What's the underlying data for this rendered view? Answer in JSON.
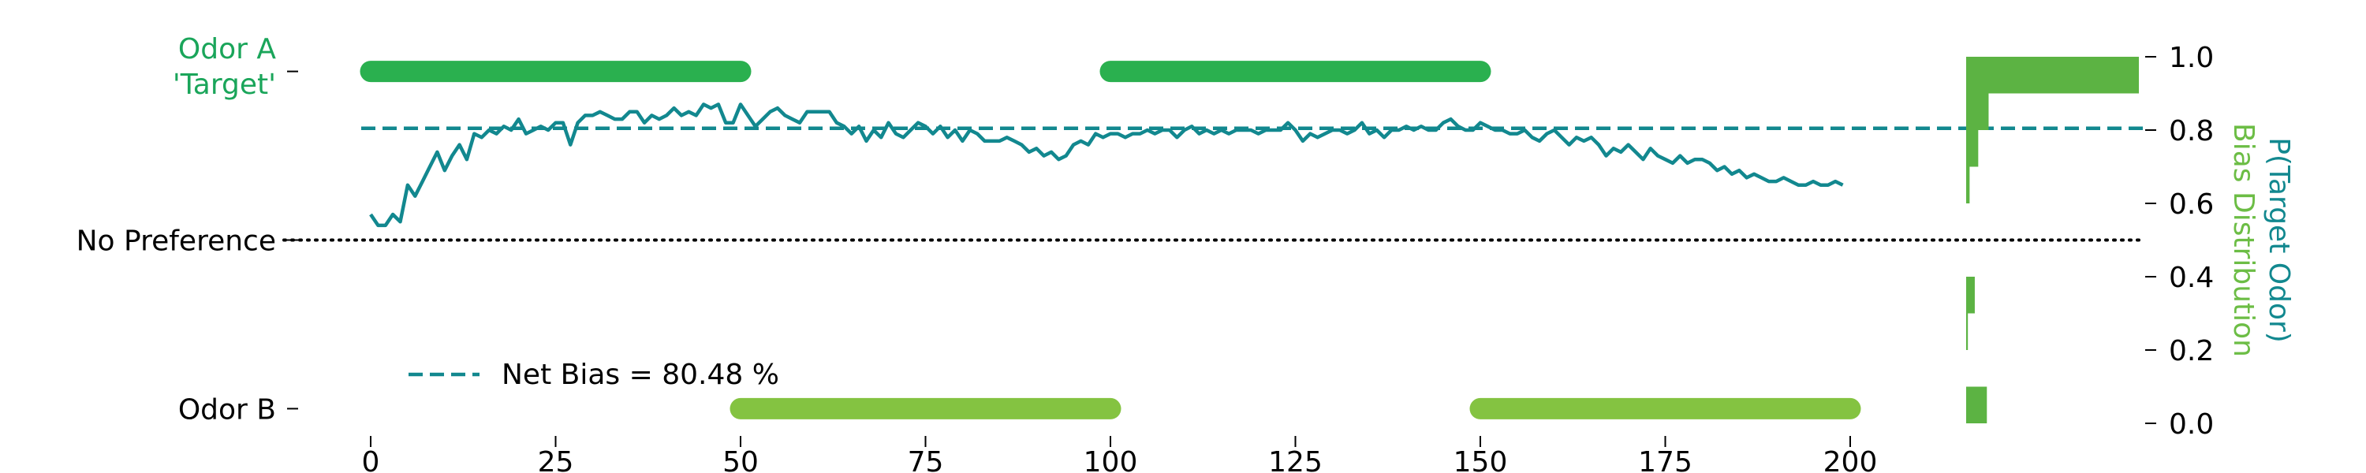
{
  "chart_data": {
    "type": "line",
    "title": "",
    "xlabel": "",
    "ylabel": "P(Target Odor)",
    "ylabel2": "Bias Distribution",
    "xlim": [
      -4,
      204
    ],
    "ylim": [
      -0.06,
      1.06
    ],
    "x_ticks": [
      0,
      25,
      50,
      75,
      100,
      125,
      150,
      175,
      200
    ],
    "y_ticks": [
      0.0,
      0.2,
      0.4,
      0.6,
      0.8,
      1.0
    ],
    "y_tick_labels": [
      "0.0",
      "0.2",
      "0.4",
      "0.6",
      "0.8",
      "1.0"
    ],
    "left_labels": [
      {
        "key": "odor_a",
        "lines": [
          "Odor A",
          "'Target'"
        ],
        "y": 0.96,
        "color": "#1aa55a"
      },
      {
        "key": "no_pref",
        "lines": [
          "No Preference"
        ],
        "y": 0.5,
        "color": "#000000"
      },
      {
        "key": "odor_b",
        "lines": [
          "Odor B"
        ],
        "y": 0.04,
        "color": "#000000"
      }
    ],
    "no_preference_y": 0.5,
    "net_bias": {
      "y": 0.8048,
      "label": "Net Bias = 80.48 %",
      "color": "#12888f"
    },
    "odor_blocks": [
      {
        "odor": "A",
        "x_start": 0,
        "x_end": 50,
        "y": 0.96,
        "color": "#2ab04f"
      },
      {
        "odor": "B",
        "x_start": 50,
        "x_end": 100,
        "y": 0.04,
        "color": "#84c341"
      },
      {
        "odor": "A",
        "x_start": 100,
        "x_end": 150,
        "y": 0.96,
        "color": "#2ab04f"
      },
      {
        "odor": "B",
        "x_start": 150,
        "x_end": 200,
        "y": 0.04,
        "color": "#84c341"
      }
    ],
    "series": [
      {
        "color": "#12888f",
        "points": [
          [
            0,
            0.57
          ],
          [
            1,
            0.54
          ],
          [
            2,
            0.54
          ],
          [
            3,
            0.57
          ],
          [
            4,
            0.55
          ],
          [
            5,
            0.65
          ],
          [
            6,
            0.62
          ],
          [
            7,
            0.66
          ],
          [
            8,
            0.7
          ],
          [
            9,
            0.74
          ],
          [
            10,
            0.69
          ],
          [
            11,
            0.73
          ],
          [
            12,
            0.76
          ],
          [
            13,
            0.72
          ],
          [
            14,
            0.79
          ],
          [
            15,
            0.78
          ],
          [
            16,
            0.8
          ],
          [
            17,
            0.79
          ],
          [
            18,
            0.81
          ],
          [
            19,
            0.8
          ],
          [
            20,
            0.83
          ],
          [
            21,
            0.79
          ],
          [
            22,
            0.8
          ],
          [
            23,
            0.81
          ],
          [
            24,
            0.8
          ],
          [
            25,
            0.82
          ],
          [
            26,
            0.82
          ],
          [
            27,
            0.76
          ],
          [
            28,
            0.82
          ],
          [
            29,
            0.84
          ],
          [
            30,
            0.84
          ],
          [
            31,
            0.85
          ],
          [
            32,
            0.84
          ],
          [
            33,
            0.83
          ],
          [
            34,
            0.83
          ],
          [
            35,
            0.85
          ],
          [
            36,
            0.85
          ],
          [
            37,
            0.82
          ],
          [
            38,
            0.84
          ],
          [
            39,
            0.83
          ],
          [
            40,
            0.84
          ],
          [
            41,
            0.86
          ],
          [
            42,
            0.84
          ],
          [
            43,
            0.85
          ],
          [
            44,
            0.84
          ],
          [
            45,
            0.87
          ],
          [
            46,
            0.86
          ],
          [
            47,
            0.87
          ],
          [
            48,
            0.82
          ],
          [
            49,
            0.82
          ],
          [
            50,
            0.87
          ],
          [
            51,
            0.84
          ],
          [
            52,
            0.81
          ],
          [
            53,
            0.83
          ],
          [
            54,
            0.85
          ],
          [
            55,
            0.86
          ],
          [
            56,
            0.84
          ],
          [
            57,
            0.83
          ],
          [
            58,
            0.82
          ],
          [
            59,
            0.85
          ],
          [
            60,
            0.85
          ],
          [
            61,
            0.85
          ],
          [
            62,
            0.85
          ],
          [
            63,
            0.82
          ],
          [
            64,
            0.81
          ],
          [
            65,
            0.79
          ],
          [
            66,
            0.81
          ],
          [
            67,
            0.77
          ],
          [
            68,
            0.8
          ],
          [
            69,
            0.78
          ],
          [
            70,
            0.82
          ],
          [
            71,
            0.79
          ],
          [
            72,
            0.78
          ],
          [
            73,
            0.8
          ],
          [
            74,
            0.82
          ],
          [
            75,
            0.81
          ],
          [
            76,
            0.79
          ],
          [
            77,
            0.81
          ],
          [
            78,
            0.78
          ],
          [
            79,
            0.8
          ],
          [
            80,
            0.77
          ],
          [
            81,
            0.8
          ],
          [
            82,
            0.79
          ],
          [
            83,
            0.77
          ],
          [
            84,
            0.77
          ],
          [
            85,
            0.77
          ],
          [
            86,
            0.78
          ],
          [
            87,
            0.77
          ],
          [
            88,
            0.76
          ],
          [
            89,
            0.74
          ],
          [
            90,
            0.75
          ],
          [
            91,
            0.73
          ],
          [
            92,
            0.74
          ],
          [
            93,
            0.72
          ],
          [
            94,
            0.73
          ],
          [
            95,
            0.76
          ],
          [
            96,
            0.77
          ],
          [
            97,
            0.76
          ],
          [
            98,
            0.79
          ],
          [
            99,
            0.78
          ],
          [
            100,
            0.79
          ],
          [
            101,
            0.79
          ],
          [
            102,
            0.78
          ],
          [
            103,
            0.79
          ],
          [
            104,
            0.79
          ],
          [
            105,
            0.8
          ],
          [
            106,
            0.79
          ],
          [
            107,
            0.8
          ],
          [
            108,
            0.8
          ],
          [
            109,
            0.78
          ],
          [
            110,
            0.8
          ],
          [
            111,
            0.81
          ],
          [
            112,
            0.79
          ],
          [
            113,
            0.8
          ],
          [
            114,
            0.79
          ],
          [
            115,
            0.8
          ],
          [
            116,
            0.79
          ],
          [
            117,
            0.8
          ],
          [
            118,
            0.8
          ],
          [
            119,
            0.8
          ],
          [
            120,
            0.79
          ],
          [
            121,
            0.8
          ],
          [
            122,
            0.8
          ],
          [
            123,
            0.8
          ],
          [
            124,
            0.82
          ],
          [
            125,
            0.8
          ],
          [
            126,
            0.77
          ],
          [
            127,
            0.79
          ],
          [
            128,
            0.78
          ],
          [
            129,
            0.79
          ],
          [
            130,
            0.8
          ],
          [
            131,
            0.8
          ],
          [
            132,
            0.79
          ],
          [
            133,
            0.8
          ],
          [
            134,
            0.82
          ],
          [
            135,
            0.79
          ],
          [
            136,
            0.8
          ],
          [
            137,
            0.78
          ],
          [
            138,
            0.8
          ],
          [
            139,
            0.8
          ],
          [
            140,
            0.81
          ],
          [
            141,
            0.8
          ],
          [
            142,
            0.81
          ],
          [
            143,
            0.8
          ],
          [
            144,
            0.8
          ],
          [
            145,
            0.82
          ],
          [
            146,
            0.83
          ],
          [
            147,
            0.81
          ],
          [
            148,
            0.8
          ],
          [
            149,
            0.8
          ],
          [
            150,
            0.82
          ],
          [
            151,
            0.81
          ],
          [
            152,
            0.8
          ],
          [
            153,
            0.8
          ],
          [
            154,
            0.79
          ],
          [
            155,
            0.79
          ],
          [
            156,
            0.8
          ],
          [
            157,
            0.78
          ],
          [
            158,
            0.77
          ],
          [
            159,
            0.79
          ],
          [
            160,
            0.8
          ],
          [
            161,
            0.78
          ],
          [
            162,
            0.76
          ],
          [
            163,
            0.78
          ],
          [
            164,
            0.77
          ],
          [
            165,
            0.78
          ],
          [
            166,
            0.76
          ],
          [
            167,
            0.73
          ],
          [
            168,
            0.75
          ],
          [
            169,
            0.74
          ],
          [
            170,
            0.76
          ],
          [
            171,
            0.74
          ],
          [
            172,
            0.72
          ],
          [
            173,
            0.75
          ],
          [
            174,
            0.73
          ],
          [
            175,
            0.72
          ],
          [
            176,
            0.71
          ],
          [
            177,
            0.73
          ],
          [
            178,
            0.71
          ],
          [
            179,
            0.72
          ],
          [
            180,
            0.72
          ],
          [
            181,
            0.71
          ],
          [
            182,
            0.69
          ],
          [
            183,
            0.7
          ],
          [
            184,
            0.68
          ],
          [
            185,
            0.69
          ],
          [
            186,
            0.67
          ],
          [
            187,
            0.68
          ],
          [
            188,
            0.67
          ],
          [
            189,
            0.66
          ],
          [
            190,
            0.66
          ],
          [
            191,
            0.67
          ],
          [
            192,
            0.66
          ],
          [
            193,
            0.65
          ],
          [
            194,
            0.65
          ],
          [
            195,
            0.66
          ],
          [
            196,
            0.65
          ],
          [
            197,
            0.65
          ],
          [
            198,
            0.66
          ],
          [
            199,
            0.65
          ]
        ]
      }
    ],
    "bias_distribution": {
      "color": "#5cb343",
      "bins": [
        {
          "y0": 0.0,
          "y1": 0.1,
          "value": 0.12
        },
        {
          "y0": 0.2,
          "y1": 0.3,
          "value": 0.01
        },
        {
          "y0": 0.3,
          "y1": 0.4,
          "value": 0.05
        },
        {
          "y0": 0.6,
          "y1": 0.7,
          "value": 0.02
        },
        {
          "y0": 0.7,
          "y1": 0.8,
          "value": 0.07
        },
        {
          "y0": 0.8,
          "y1": 0.9,
          "value": 0.13
        },
        {
          "y0": 0.9,
          "y1": 1.0,
          "value": 1.0
        }
      ]
    },
    "axis_label_colors": {
      "y_right": "#12888f",
      "y_right2": "#6cbd45"
    },
    "legend": {
      "placement": "lower-left"
    },
    "grid": false
  }
}
